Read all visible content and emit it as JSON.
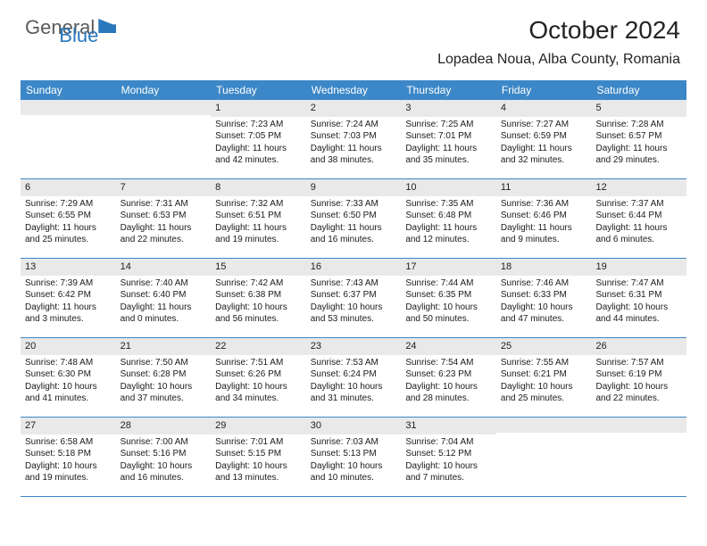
{
  "logo": {
    "part1": "General",
    "part2": "Blue"
  },
  "title": "October 2024",
  "location": "Lopadea Noua, Alba County, Romania",
  "brand_color": "#3c87c7",
  "header_bg": "#3c87c7",
  "daynum_bg": "#e9e9e9",
  "day_headers": [
    "Sunday",
    "Monday",
    "Tuesday",
    "Wednesday",
    "Thursday",
    "Friday",
    "Saturday"
  ],
  "weeks": [
    [
      {
        "num": "",
        "sunrise": "",
        "sunset": "",
        "daylight": ""
      },
      {
        "num": "",
        "sunrise": "",
        "sunset": "",
        "daylight": ""
      },
      {
        "num": "1",
        "sunrise": "Sunrise: 7:23 AM",
        "sunset": "Sunset: 7:05 PM",
        "daylight": "Daylight: 11 hours and 42 minutes."
      },
      {
        "num": "2",
        "sunrise": "Sunrise: 7:24 AM",
        "sunset": "Sunset: 7:03 PM",
        "daylight": "Daylight: 11 hours and 38 minutes."
      },
      {
        "num": "3",
        "sunrise": "Sunrise: 7:25 AM",
        "sunset": "Sunset: 7:01 PM",
        "daylight": "Daylight: 11 hours and 35 minutes."
      },
      {
        "num": "4",
        "sunrise": "Sunrise: 7:27 AM",
        "sunset": "Sunset: 6:59 PM",
        "daylight": "Daylight: 11 hours and 32 minutes."
      },
      {
        "num": "5",
        "sunrise": "Sunrise: 7:28 AM",
        "sunset": "Sunset: 6:57 PM",
        "daylight": "Daylight: 11 hours and 29 minutes."
      }
    ],
    [
      {
        "num": "6",
        "sunrise": "Sunrise: 7:29 AM",
        "sunset": "Sunset: 6:55 PM",
        "daylight": "Daylight: 11 hours and 25 minutes."
      },
      {
        "num": "7",
        "sunrise": "Sunrise: 7:31 AM",
        "sunset": "Sunset: 6:53 PM",
        "daylight": "Daylight: 11 hours and 22 minutes."
      },
      {
        "num": "8",
        "sunrise": "Sunrise: 7:32 AM",
        "sunset": "Sunset: 6:51 PM",
        "daylight": "Daylight: 11 hours and 19 minutes."
      },
      {
        "num": "9",
        "sunrise": "Sunrise: 7:33 AM",
        "sunset": "Sunset: 6:50 PM",
        "daylight": "Daylight: 11 hours and 16 minutes."
      },
      {
        "num": "10",
        "sunrise": "Sunrise: 7:35 AM",
        "sunset": "Sunset: 6:48 PM",
        "daylight": "Daylight: 11 hours and 12 minutes."
      },
      {
        "num": "11",
        "sunrise": "Sunrise: 7:36 AM",
        "sunset": "Sunset: 6:46 PM",
        "daylight": "Daylight: 11 hours and 9 minutes."
      },
      {
        "num": "12",
        "sunrise": "Sunrise: 7:37 AM",
        "sunset": "Sunset: 6:44 PM",
        "daylight": "Daylight: 11 hours and 6 minutes."
      }
    ],
    [
      {
        "num": "13",
        "sunrise": "Sunrise: 7:39 AM",
        "sunset": "Sunset: 6:42 PM",
        "daylight": "Daylight: 11 hours and 3 minutes."
      },
      {
        "num": "14",
        "sunrise": "Sunrise: 7:40 AM",
        "sunset": "Sunset: 6:40 PM",
        "daylight": "Daylight: 11 hours and 0 minutes."
      },
      {
        "num": "15",
        "sunrise": "Sunrise: 7:42 AM",
        "sunset": "Sunset: 6:38 PM",
        "daylight": "Daylight: 10 hours and 56 minutes."
      },
      {
        "num": "16",
        "sunrise": "Sunrise: 7:43 AM",
        "sunset": "Sunset: 6:37 PM",
        "daylight": "Daylight: 10 hours and 53 minutes."
      },
      {
        "num": "17",
        "sunrise": "Sunrise: 7:44 AM",
        "sunset": "Sunset: 6:35 PM",
        "daylight": "Daylight: 10 hours and 50 minutes."
      },
      {
        "num": "18",
        "sunrise": "Sunrise: 7:46 AM",
        "sunset": "Sunset: 6:33 PM",
        "daylight": "Daylight: 10 hours and 47 minutes."
      },
      {
        "num": "19",
        "sunrise": "Sunrise: 7:47 AM",
        "sunset": "Sunset: 6:31 PM",
        "daylight": "Daylight: 10 hours and 44 minutes."
      }
    ],
    [
      {
        "num": "20",
        "sunrise": "Sunrise: 7:48 AM",
        "sunset": "Sunset: 6:30 PM",
        "daylight": "Daylight: 10 hours and 41 minutes."
      },
      {
        "num": "21",
        "sunrise": "Sunrise: 7:50 AM",
        "sunset": "Sunset: 6:28 PM",
        "daylight": "Daylight: 10 hours and 37 minutes."
      },
      {
        "num": "22",
        "sunrise": "Sunrise: 7:51 AM",
        "sunset": "Sunset: 6:26 PM",
        "daylight": "Daylight: 10 hours and 34 minutes."
      },
      {
        "num": "23",
        "sunrise": "Sunrise: 7:53 AM",
        "sunset": "Sunset: 6:24 PM",
        "daylight": "Daylight: 10 hours and 31 minutes."
      },
      {
        "num": "24",
        "sunrise": "Sunrise: 7:54 AM",
        "sunset": "Sunset: 6:23 PM",
        "daylight": "Daylight: 10 hours and 28 minutes."
      },
      {
        "num": "25",
        "sunrise": "Sunrise: 7:55 AM",
        "sunset": "Sunset: 6:21 PM",
        "daylight": "Daylight: 10 hours and 25 minutes."
      },
      {
        "num": "26",
        "sunrise": "Sunrise: 7:57 AM",
        "sunset": "Sunset: 6:19 PM",
        "daylight": "Daylight: 10 hours and 22 minutes."
      }
    ],
    [
      {
        "num": "27",
        "sunrise": "Sunrise: 6:58 AM",
        "sunset": "Sunset: 5:18 PM",
        "daylight": "Daylight: 10 hours and 19 minutes."
      },
      {
        "num": "28",
        "sunrise": "Sunrise: 7:00 AM",
        "sunset": "Sunset: 5:16 PM",
        "daylight": "Daylight: 10 hours and 16 minutes."
      },
      {
        "num": "29",
        "sunrise": "Sunrise: 7:01 AM",
        "sunset": "Sunset: 5:15 PM",
        "daylight": "Daylight: 10 hours and 13 minutes."
      },
      {
        "num": "30",
        "sunrise": "Sunrise: 7:03 AM",
        "sunset": "Sunset: 5:13 PM",
        "daylight": "Daylight: 10 hours and 10 minutes."
      },
      {
        "num": "31",
        "sunrise": "Sunrise: 7:04 AM",
        "sunset": "Sunset: 5:12 PM",
        "daylight": "Daylight: 10 hours and 7 minutes."
      },
      {
        "num": "",
        "sunrise": "",
        "sunset": "",
        "daylight": ""
      },
      {
        "num": "",
        "sunrise": "",
        "sunset": "",
        "daylight": ""
      }
    ]
  ]
}
